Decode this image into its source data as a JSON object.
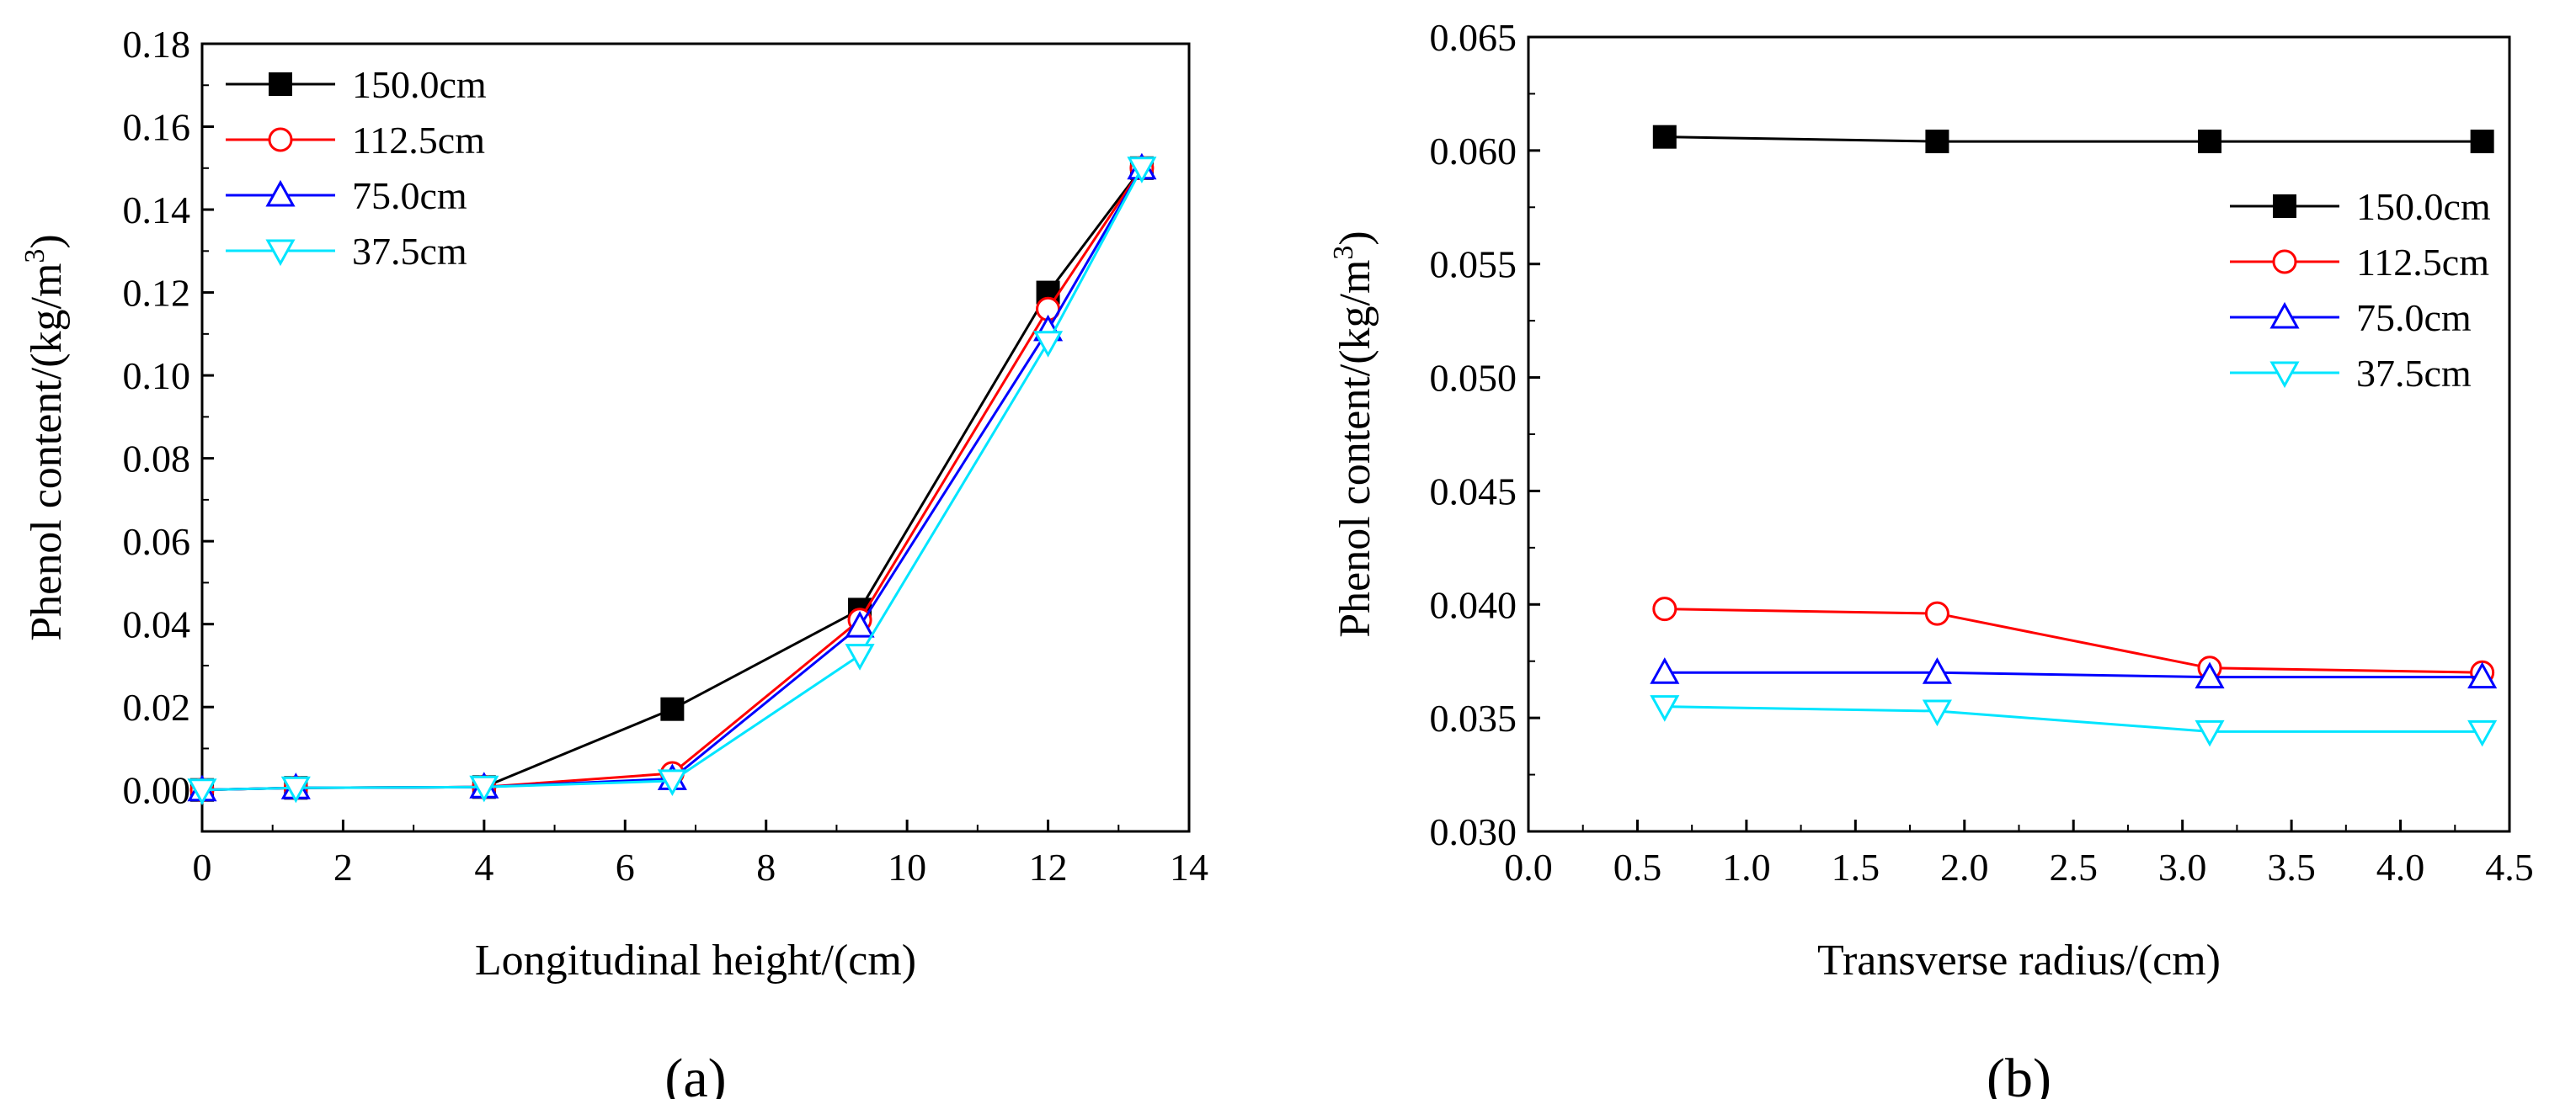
{
  "chart_data": [
    {
      "type": "line",
      "caption": "(a)",
      "xlabel": "Longitudinal height/(cm)",
      "ylabel": "Phenol content/(kg/m",
      "ylabel_sup": "3",
      "ylabel_end": ")",
      "xlim": [
        0,
        14
      ],
      "ylim": [
        -0.01,
        0.18
      ],
      "xticks": [
        "0",
        "2",
        "4",
        "6",
        "8",
        "10",
        "12",
        "14"
      ],
      "yticks": [
        "0.00",
        "0.02",
        "0.04",
        "0.06",
        "0.08",
        "0.10",
        "0.12",
        "0.14",
        "0.16",
        "0.18"
      ],
      "legend_position": "top-left",
      "x": [
        0,
        1.33,
        4.0,
        6.67,
        9.33,
        12.0,
        13.33
      ],
      "series": [
        {
          "name": "150.0cm",
          "color": "#000000",
          "marker": "square-filled",
          "values": [
            0.0,
            0.0005,
            0.0007,
            0.0195,
            0.0435,
            0.12,
            0.15
          ]
        },
        {
          "name": "112.5cm",
          "color": "#ff0000",
          "marker": "circle-open",
          "values": [
            0.0,
            0.0005,
            0.0007,
            0.004,
            0.041,
            0.116,
            0.15
          ]
        },
        {
          "name": "75.0cm",
          "color": "#0000ff",
          "marker": "triangle-up-open",
          "values": [
            0.0,
            0.0005,
            0.0007,
            0.0027,
            0.0395,
            0.111,
            0.15
          ]
        },
        {
          "name": "37.5cm",
          "color": "#00e5ff",
          "marker": "triangle-down-open",
          "values": [
            0.0,
            0.0005,
            0.0007,
            0.0022,
            0.0325,
            0.108,
            0.15
          ]
        }
      ]
    },
    {
      "type": "line",
      "caption": "(b)",
      "xlabel": "Transverse radius/(cm)",
      "ylabel": "Phenol content/(kg/m",
      "ylabel_sup": "3",
      "ylabel_end": ")",
      "xlim": [
        0,
        4.5
      ],
      "ylim": [
        0.03,
        0.065
      ],
      "xticks": [
        "0.0",
        "0.5",
        "1.0",
        "1.5",
        "2.0",
        "2.5",
        "3.0",
        "3.5",
        "4.0",
        "4.5"
      ],
      "yticks": [
        "0.030",
        "0.035",
        "0.040",
        "0.045",
        "0.050",
        "0.055",
        "0.060",
        "0.065"
      ],
      "legend_position": "top-right",
      "x": [
        0.625,
        1.875,
        3.125,
        4.375
      ],
      "series": [
        {
          "name": "150.0cm",
          "color": "#000000",
          "marker": "square-filled",
          "values": [
            0.0606,
            0.0604,
            0.0604,
            0.0604
          ]
        },
        {
          "name": "112.5cm",
          "color": "#ff0000",
          "marker": "circle-open",
          "values": [
            0.0398,
            0.0396,
            0.0372,
            0.037
          ]
        },
        {
          "name": "75.0cm",
          "color": "#0000ff",
          "marker": "triangle-up-open",
          "values": [
            0.037,
            0.037,
            0.0368,
            0.0368
          ]
        },
        {
          "name": "37.5cm",
          "color": "#00e5ff",
          "marker": "triangle-down-open",
          "values": [
            0.0355,
            0.0353,
            0.0344,
            0.0344
          ]
        }
      ]
    }
  ]
}
